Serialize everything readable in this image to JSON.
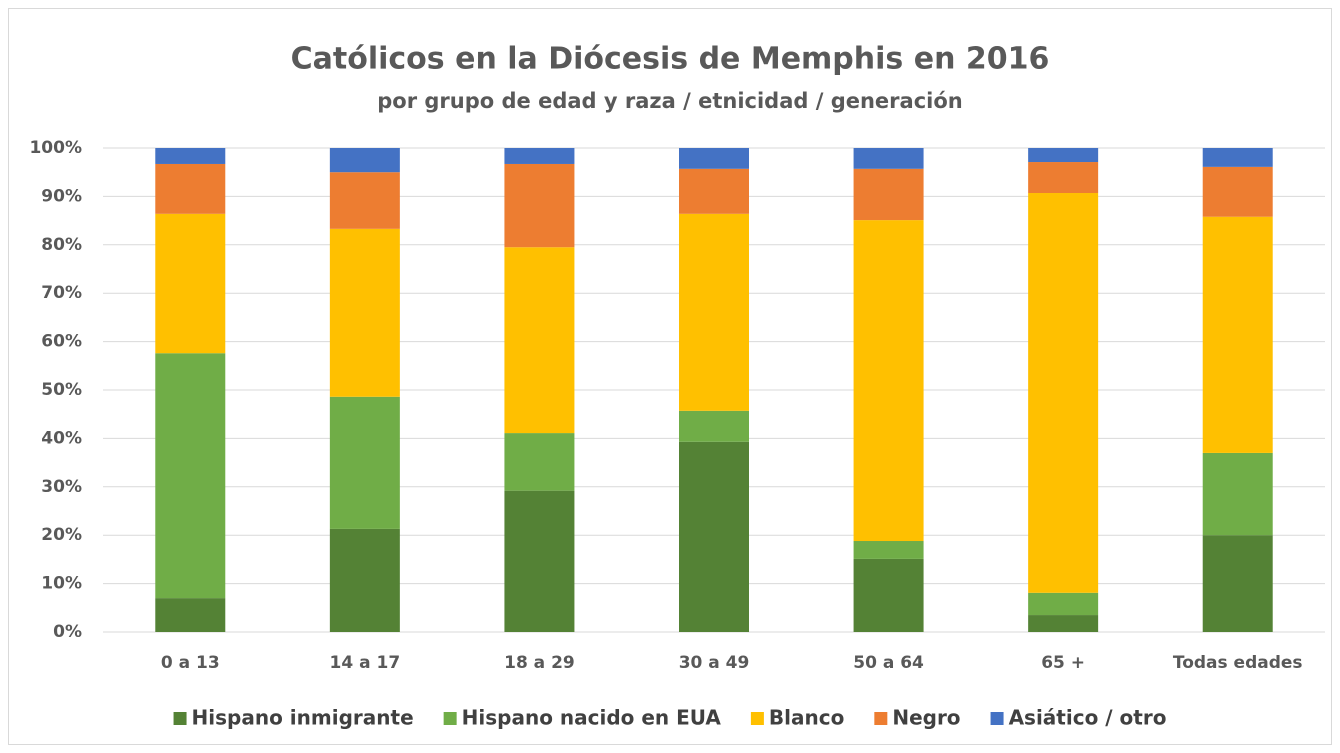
{
  "chart_data": {
    "type": "stacked_bar",
    "title": "Católicos en la Diócesis de Memphis en 2016",
    "subtitle": "por grupo de edad y raza / etnicidad / generación",
    "categories": [
      "0 a 13",
      "14 a 17",
      "18 a 29",
      "30 a 49",
      "50 a 64",
      "65 +",
      "Todas edades"
    ],
    "series": [
      {
        "name": "Hispano inmigrante",
        "color": "#548235",
        "values": [
          7.0,
          21.3,
          29.2,
          39.3,
          15.1,
          3.5,
          20.0
        ]
      },
      {
        "name": "Hispano nacido en EUA",
        "color": "#70ad47",
        "values": [
          50.6,
          27.3,
          11.9,
          6.4,
          3.7,
          4.6,
          17.0
        ]
      },
      {
        "name": "Blanco",
        "color": "#ffc000",
        "values": [
          28.8,
          34.7,
          38.4,
          40.7,
          66.3,
          82.6,
          48.8
        ]
      },
      {
        "name": "Negro",
        "color": "#ed7d31",
        "values": [
          10.3,
          11.7,
          17.2,
          9.3,
          10.6,
          6.4,
          10.3
        ]
      },
      {
        "name": "Asiático / otro",
        "color": "#4472c4",
        "values": [
          3.3,
          5.0,
          3.3,
          4.3,
          4.3,
          2.9,
          3.9
        ]
      }
    ],
    "ylim": [
      0,
      100
    ],
    "yticks": [
      {
        "value": 0,
        "label": "0%"
      },
      {
        "value": 10,
        "label": "10%"
      },
      {
        "value": 20,
        "label": "20%"
      },
      {
        "value": 30,
        "label": "30%"
      },
      {
        "value": 40,
        "label": "40%"
      },
      {
        "value": 50,
        "label": "50%"
      },
      {
        "value": 60,
        "label": "60%"
      },
      {
        "value": 70,
        "label": "70%"
      },
      {
        "value": 80,
        "label": "80%"
      },
      {
        "value": 90,
        "label": "90%"
      },
      {
        "value": 100,
        "label": "100%"
      }
    ],
    "grid": true,
    "legend": "bottom"
  }
}
